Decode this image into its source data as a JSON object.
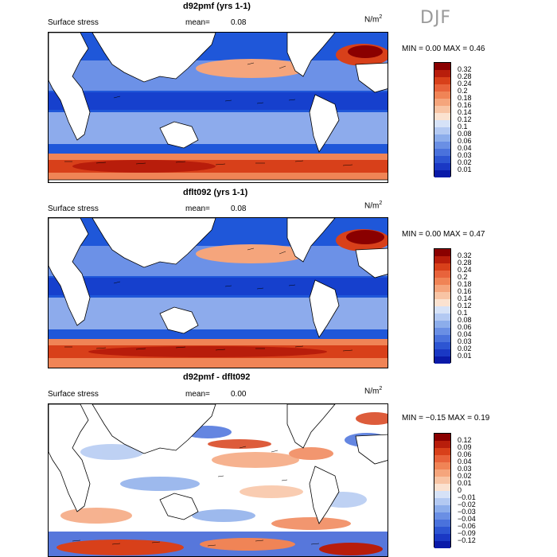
{
  "season": "DJF",
  "colors": {
    "ocean_blue": "#1f57d9",
    "ocean_dark": "#0b1fa8",
    "light_blue": "#b9ccf2",
    "white": "#ffffff",
    "orange": "#f29466",
    "red": "#d8401a",
    "dark_red": "#8a0000",
    "land": "#ffffff",
    "coast": "#000000"
  },
  "panels": [
    {
      "title": "d92pmf (yrs 1-1)",
      "label": "Surface stress",
      "mean_label": "mean=",
      "mean_value": "0.08",
      "units_base": "N/m",
      "units_exp": "2",
      "minmax": "MIN =    0.00 MAX =    0.46",
      "colorbar_ticks": [
        "0.32",
        "0.28",
        "0.24",
        "0.2",
        "0.18",
        "0.16",
        "0.14",
        "0.12",
        "0.1",
        "0.08",
        "0.06",
        "0.04",
        "0.03",
        "0.02",
        "0.01"
      ],
      "colorbar_colors": [
        "#8a0000",
        "#b81d0b",
        "#d8401a",
        "#e8633b",
        "#f08456",
        "#f5a57c",
        "#f8c4a4",
        "#fbe2d0",
        "#d6e2f7",
        "#b3c9f2",
        "#8cadeb",
        "#6a8fe4",
        "#4a72dc",
        "#2d55d2",
        "#1a38c4",
        "#0a1aa8"
      ]
    },
    {
      "title": "dflt092 (yrs 1-1)",
      "label": "Surface stress",
      "mean_label": "mean=",
      "mean_value": "0.08",
      "units_base": "N/m",
      "units_exp": "2",
      "minmax": "MIN =    0.00 MAX =    0.47",
      "colorbar_ticks": [
        "0.32",
        "0.28",
        "0.24",
        "0.2",
        "0.18",
        "0.16",
        "0.14",
        "0.12",
        "0.1",
        "0.08",
        "0.06",
        "0.04",
        "0.03",
        "0.02",
        "0.01"
      ],
      "colorbar_colors": [
        "#8a0000",
        "#b81d0b",
        "#d8401a",
        "#e8633b",
        "#f08456",
        "#f5a57c",
        "#f8c4a4",
        "#fbe2d0",
        "#d6e2f7",
        "#b3c9f2",
        "#8cadeb",
        "#6a8fe4",
        "#4a72dc",
        "#2d55d2",
        "#1a38c4",
        "#0a1aa8"
      ]
    },
    {
      "title": "d92pmf - dflt092",
      "label": "Surface stress",
      "mean_label": "mean=",
      "mean_value": "0.00",
      "units_base": "N/m",
      "units_exp": "2",
      "minmax": "MIN = −0.15 MAX =    0.19",
      "colorbar_ticks": [
        "0.12",
        "0.09",
        "0.06",
        "0.04",
        "0.03",
        "0.02",
        "0.01",
        "0",
        "−0.01",
        "−0.02",
        "−0.03",
        "−0.04",
        "−0.06",
        "−0.09",
        "−0.12"
      ],
      "colorbar_colors": [
        "#8a0000",
        "#b81d0b",
        "#d8401a",
        "#e8633b",
        "#f08456",
        "#f5a57c",
        "#f8c4a4",
        "#fbe2d0",
        "#d6e2f7",
        "#b3c9f2",
        "#8cadeb",
        "#6a8fe4",
        "#4a72dc",
        "#2d55d2",
        "#1a38c4",
        "#0a1aa8"
      ]
    }
  ]
}
